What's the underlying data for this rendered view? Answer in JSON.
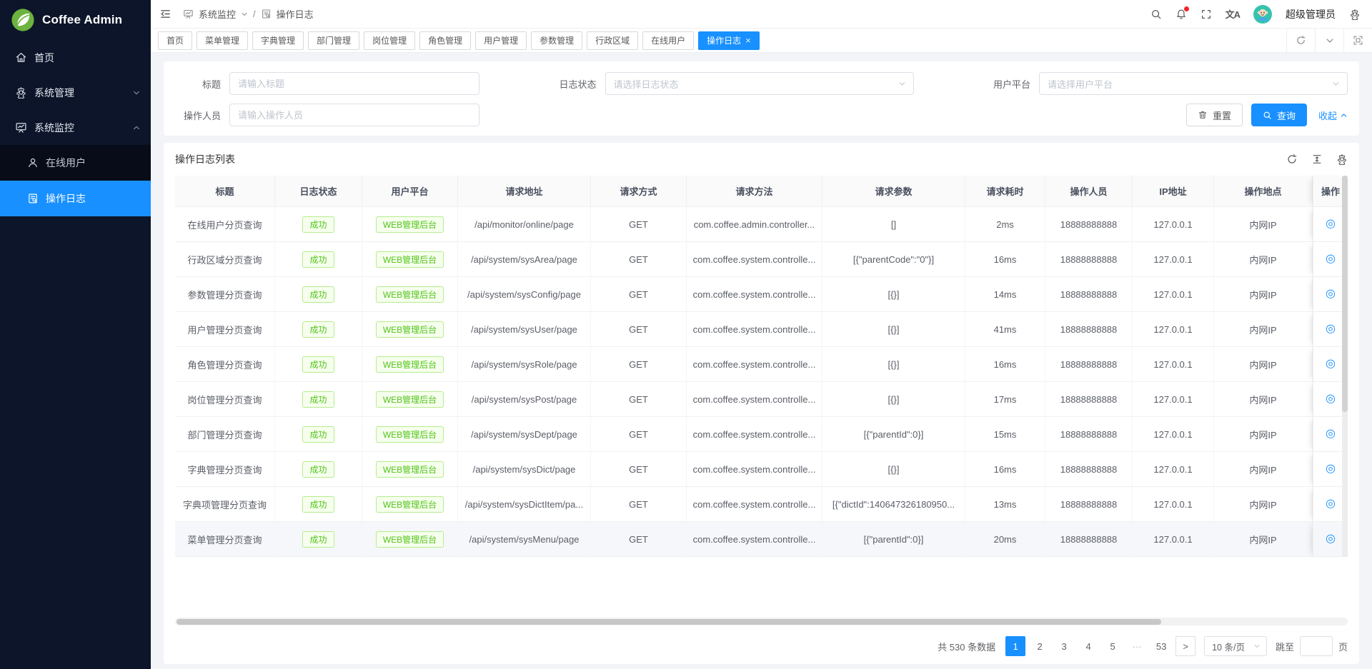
{
  "app": {
    "name": "Coffee Admin"
  },
  "colors": {
    "accent": "#1890ff",
    "success_text": "#52c41a",
    "success_bg": "#f6ffed",
    "success_border": "#b7eb8f",
    "sidebar_bg": "#0c1529",
    "submenu_bg": "#070c18"
  },
  "sidebar": {
    "items": [
      {
        "label": "首页",
        "icon": "home-icon",
        "active": false
      },
      {
        "label": "系统管理",
        "icon": "gear-icon",
        "state": "collapsed"
      },
      {
        "label": "系统监控",
        "icon": "monitor-icon",
        "state": "expanded",
        "children": [
          {
            "label": "在线用户",
            "icon": "user-icon",
            "active": false
          },
          {
            "label": "操作日志",
            "icon": "log-icon",
            "active": true
          }
        ]
      }
    ]
  },
  "topbar": {
    "breadcrumb": {
      "parent": "系统监控",
      "separator": "/",
      "current": "操作日志"
    },
    "username": "超级管理员",
    "translate_icon_text": "文A",
    "has_notification_dot": true
  },
  "tabs": {
    "items": [
      "首页",
      "菜单管理",
      "字典管理",
      "部门管理",
      "岗位管理",
      "角色管理",
      "用户管理",
      "参数管理",
      "行政区域",
      "在线用户",
      "操作日志"
    ],
    "active": "操作日志",
    "close_glyph": "×"
  },
  "search": {
    "title_label": "标题",
    "title_placeholder": "请输入标题",
    "status_label": "日志状态",
    "status_placeholder": "请选择日志状态",
    "platform_label": "用户平台",
    "platform_placeholder": "请选择用户平台",
    "operator_label": "操作人员",
    "operator_placeholder": "请输入操作人员",
    "reset_label": "重置",
    "query_label": "查询",
    "collapse_label": "收起"
  },
  "table": {
    "title": "操作日志列表",
    "columns": [
      "标题",
      "日志状态",
      "用户平台",
      "请求地址",
      "请求方式",
      "请求方法",
      "请求参数",
      "请求耗时",
      "操作人员",
      "IP地址",
      "操作地点",
      "操作"
    ],
    "rows": [
      {
        "title": "在线用户分页查询",
        "status": "成功",
        "platform": "WEB管理后台",
        "url": "/api/monitor/online/page",
        "method": "GET",
        "handler": "com.coffee.admin.controller...",
        "params": "[]",
        "time": "2ms",
        "operator": "18888888888",
        "ip": "127.0.0.1",
        "location": "内网IP"
      },
      {
        "title": "行政区域分页查询",
        "status": "成功",
        "platform": "WEB管理后台",
        "url": "/api/system/sysArea/page",
        "method": "GET",
        "handler": "com.coffee.system.controlle...",
        "params": "[{\"parentCode\":\"0\"}]",
        "time": "16ms",
        "operator": "18888888888",
        "ip": "127.0.0.1",
        "location": "内网IP"
      },
      {
        "title": "参数管理分页查询",
        "status": "成功",
        "platform": "WEB管理后台",
        "url": "/api/system/sysConfig/page",
        "method": "GET",
        "handler": "com.coffee.system.controlle...",
        "params": "[{}]",
        "time": "14ms",
        "operator": "18888888888",
        "ip": "127.0.0.1",
        "location": "内网IP"
      },
      {
        "title": "用户管理分页查询",
        "status": "成功",
        "platform": "WEB管理后台",
        "url": "/api/system/sysUser/page",
        "method": "GET",
        "handler": "com.coffee.system.controlle...",
        "params": "[{}]",
        "time": "41ms",
        "operator": "18888888888",
        "ip": "127.0.0.1",
        "location": "内网IP"
      },
      {
        "title": "角色管理分页查询",
        "status": "成功",
        "platform": "WEB管理后台",
        "url": "/api/system/sysRole/page",
        "method": "GET",
        "handler": "com.coffee.system.controlle...",
        "params": "[{}]",
        "time": "16ms",
        "operator": "18888888888",
        "ip": "127.0.0.1",
        "location": "内网IP"
      },
      {
        "title": "岗位管理分页查询",
        "status": "成功",
        "platform": "WEB管理后台",
        "url": "/api/system/sysPost/page",
        "method": "GET",
        "handler": "com.coffee.system.controlle...",
        "params": "[{}]",
        "time": "17ms",
        "operator": "18888888888",
        "ip": "127.0.0.1",
        "location": "内网IP"
      },
      {
        "title": "部门管理分页查询",
        "status": "成功",
        "platform": "WEB管理后台",
        "url": "/api/system/sysDept/page",
        "method": "GET",
        "handler": "com.coffee.system.controlle...",
        "params": "[{\"parentId\":0}]",
        "time": "15ms",
        "operator": "18888888888",
        "ip": "127.0.0.1",
        "location": "内网IP"
      },
      {
        "title": "字典管理分页查询",
        "status": "成功",
        "platform": "WEB管理后台",
        "url": "/api/system/sysDict/page",
        "method": "GET",
        "handler": "com.coffee.system.controlle...",
        "params": "[{}]",
        "time": "16ms",
        "operator": "18888888888",
        "ip": "127.0.0.1",
        "location": "内网IP"
      },
      {
        "title": "字典项管理分页查询",
        "status": "成功",
        "platform": "WEB管理后台",
        "url": "/api/system/sysDictItem/pa...",
        "method": "GET",
        "handler": "com.coffee.system.controlle...",
        "params": "[{\"dictId\":140647326180950...",
        "time": "13ms",
        "operator": "18888888888",
        "ip": "127.0.0.1",
        "location": "内网IP"
      },
      {
        "title": "菜单管理分页查询",
        "status": "成功",
        "platform": "WEB管理后台",
        "url": "/api/system/sysMenu/page",
        "method": "GET",
        "handler": "com.coffee.system.controlle...",
        "params": "[{\"parentId\":0}]",
        "time": "20ms",
        "operator": "18888888888",
        "ip": "127.0.0.1",
        "location": "内网IP"
      }
    ]
  },
  "pagination": {
    "total_text": "共 530 条数据",
    "pages": [
      "1",
      "2",
      "3",
      "4",
      "5",
      "···",
      "53"
    ],
    "active_page": "1",
    "next_glyph": ">",
    "page_size": "10 条/页",
    "jump_prefix": "跳至",
    "jump_suffix": "页"
  },
  "icons": {
    "view_detail_glyph": "◎"
  }
}
